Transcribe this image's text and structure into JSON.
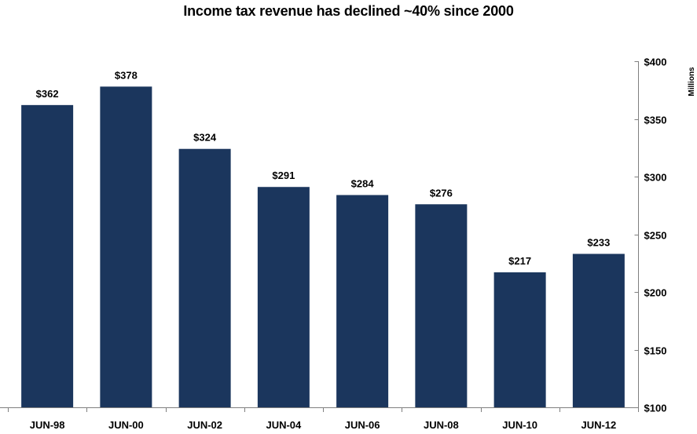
{
  "chart_data": {
    "type": "bar",
    "title": "Income tax revenue has declined ~40% since 2000",
    "categories": [
      "JUN-98",
      "JUN-00",
      "JUN-02",
      "JUN-04",
      "JUN-06",
      "JUN-08",
      "JUN-10",
      "JUN-12"
    ],
    "values": [
      362,
      378,
      324,
      291,
      284,
      276,
      217,
      233
    ],
    "data_labels": [
      "$362",
      "$378",
      "$324",
      "$291",
      "$284",
      "$276",
      "$217",
      "$233"
    ],
    "ylim": [
      100,
      400
    ],
    "yticks": [
      100,
      150,
      200,
      250,
      300,
      350,
      400
    ],
    "ytick_labels": [
      "$100",
      "$150",
      "$200",
      "$250",
      "$300",
      "$350",
      "$400"
    ],
    "y_axis_position": "right",
    "y_unit_label": "Millions",
    "xlabel": "",
    "ylabel": "",
    "grid": false,
    "bar_color": "#1b365d"
  }
}
